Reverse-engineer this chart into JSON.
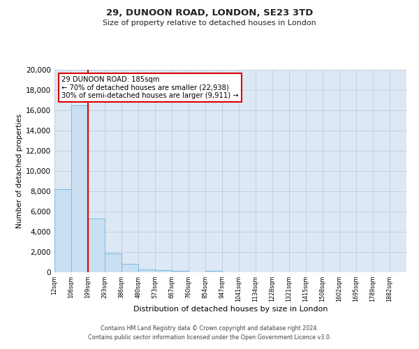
{
  "title": "29, DUNOON ROAD, LONDON, SE23 3TD",
  "subtitle": "Size of property relative to detached houses in London",
  "xlabel": "Distribution of detached houses by size in London",
  "ylabel": "Number of detached properties",
  "bar_labels": [
    "12sqm",
    "106sqm",
    "199sqm",
    "293sqm",
    "386sqm",
    "480sqm",
    "573sqm",
    "667sqm",
    "760sqm",
    "854sqm",
    "947sqm",
    "1041sqm",
    "1134sqm",
    "1228sqm",
    "1321sqm",
    "1415sqm",
    "1508sqm",
    "1602sqm",
    "1695sqm",
    "1789sqm",
    "1882sqm"
  ],
  "bar_values": [
    8200,
    16500,
    5300,
    1850,
    800,
    300,
    200,
    110,
    0,
    110,
    0,
    0,
    0,
    0,
    0,
    0,
    0,
    0,
    0,
    0,
    0
  ],
  "bar_color": "#c9dff2",
  "bar_edge_color": "#7db9e0",
  "vline_x": 2.0,
  "vline_color": "#dd0000",
  "annotation_text": "29 DUNOON ROAD: 185sqm\n← 70% of detached houses are smaller (22,938)\n30% of semi-detached houses are larger (9,911) →",
  "annotation_box_facecolor": "#ffffff",
  "annotation_box_edgecolor": "#dd0000",
  "ylim": [
    0,
    20000
  ],
  "yticks": [
    0,
    2000,
    4000,
    6000,
    8000,
    10000,
    12000,
    14000,
    16000,
    18000,
    20000
  ],
  "bg_color": "#dde8f5",
  "grid_color": "#c0ccd8",
  "footer_line1": "Contains HM Land Registry data © Crown copyright and database right 2024.",
  "footer_line2": "Contains public sector information licensed under the Open Government Licence v3.0."
}
